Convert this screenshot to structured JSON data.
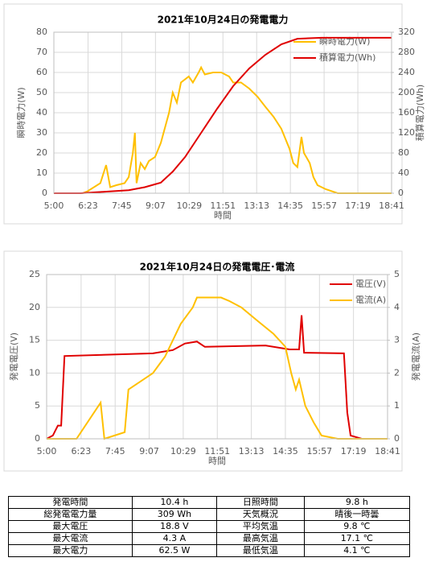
{
  "chart_data": [
    {
      "type": "line",
      "title": "2021年10月24日の発電電力",
      "xlabel": "時間",
      "ylabel": "瞬時電力(W)",
      "y2label": "積算電力(Wh)",
      "xlim": [
        300,
        1121
      ],
      "xticks": [
        {
          "value": 300,
          "label": "5:00"
        },
        {
          "value": 383,
          "label": "6:23"
        },
        {
          "value": 465,
          "label": "7:45"
        },
        {
          "value": 547,
          "label": "9:07"
        },
        {
          "value": 629,
          "label": "10:29"
        },
        {
          "value": 711,
          "label": "11:51"
        },
        {
          "value": 793,
          "label": "13:13"
        },
        {
          "value": 875,
          "label": "14:35"
        },
        {
          "value": 957,
          "label": "15:57"
        },
        {
          "value": 1039,
          "label": "17:19"
        },
        {
          "value": 1121,
          "label": "18:41"
        }
      ],
      "ylim": [
        0,
        80
      ],
      "yticks": [
        0,
        10,
        20,
        30,
        40,
        50,
        60,
        70,
        80
      ],
      "y2lim": [
        0,
        320
      ],
      "y2ticks": [
        0,
        40,
        80,
        120,
        160,
        200,
        240,
        280,
        320
      ],
      "grid": true,
      "legend": "upper right",
      "series": [
        {
          "name": "瞬時電力(W)",
          "color": "#ffc000",
          "x": [
            300,
            370,
            382,
            413,
            427,
            437,
            452,
            472,
            482,
            492,
            497,
            501,
            511,
            521,
            531,
            546,
            560,
            580,
            589,
            599,
            609,
            628,
            638,
            652,
            658,
            667,
            687,
            707,
            726,
            736,
            755,
            775,
            795,
            814,
            834,
            853,
            873,
            882,
            892,
            902,
            908,
            922,
            931,
            941,
            961,
            990,
            1121
          ],
          "values": [
            0,
            0,
            1,
            5,
            14,
            3,
            4,
            5,
            8,
            20,
            30,
            5,
            15,
            12,
            16,
            18,
            25,
            40,
            50,
            45,
            55,
            58,
            55,
            60,
            62.5,
            59,
            60,
            60,
            58,
            55,
            55,
            52,
            48,
            43,
            38,
            32,
            22,
            15,
            13,
            28,
            20,
            15,
            8,
            4,
            2,
            0,
            0
          ]
        },
        {
          "name": "積算電力(Wh)",
          "color": "#e00000",
          "axis": "y2",
          "x": [
            300,
            365,
            424,
            482,
            521,
            560,
            589,
            619,
            658,
            697,
            736,
            775,
            814,
            853,
            892,
            951,
            1121
          ],
          "values": [
            0,
            0,
            3,
            6,
            12,
            21,
            43,
            72,
            120,
            168,
            213,
            248,
            275,
            296,
            307,
            309,
            309
          ]
        }
      ]
    },
    {
      "type": "line",
      "title": "2021年10月24日の発電電圧･電流",
      "xlabel": "時間",
      "ylabel": "発電電圧(V)",
      "y2label": "発電電流(A)",
      "xlim": [
        300,
        1121
      ],
      "xticks": [
        {
          "value": 300,
          "label": "5:00"
        },
        {
          "value": 383,
          "label": "6:23"
        },
        {
          "value": 465,
          "label": "7:45"
        },
        {
          "value": 547,
          "label": "9:07"
        },
        {
          "value": 629,
          "label": "10:29"
        },
        {
          "value": 711,
          "label": "11:51"
        },
        {
          "value": 793,
          "label": "13:13"
        },
        {
          "value": 875,
          "label": "14:35"
        },
        {
          "value": 957,
          "label": "15:57"
        },
        {
          "value": 1039,
          "label": "17:19"
        },
        {
          "value": 1121,
          "label": "18:41"
        }
      ],
      "ylim": [
        0,
        25
      ],
      "yticks": [
        0,
        5,
        10,
        15,
        20,
        25
      ],
      "y2lim": [
        0,
        5
      ],
      "y2ticks": [
        0,
        1,
        2,
        3,
        4,
        5
      ],
      "grid": true,
      "legend": "upper right",
      "series": [
        {
          "name": "電圧(V)",
          "color": "#e00000",
          "x": [
            300,
            315,
            327,
            335,
            343,
            556,
            604,
            633,
            662,
            681,
            827,
            885,
            908,
            914,
            920,
            1016,
            1024,
            1032,
            1059,
            1121
          ],
          "values": [
            0,
            0.5,
            2,
            2,
            12.6,
            13,
            13.5,
            14.5,
            14.8,
            14,
            14.2,
            13.6,
            13.6,
            18.8,
            13.1,
            13,
            4,
            0.5,
            0,
            0
          ]
        },
        {
          "name": "電流(A)",
          "color": "#ffc000",
          "axis": "y2",
          "x": [
            300,
            372,
            430,
            439,
            488,
            497,
            556,
            585,
            604,
            623,
            652,
            662,
            720,
            739,
            769,
            807,
            846,
            875,
            889,
            900,
            908,
            923,
            943,
            962,
            1001,
            1121
          ],
          "values": [
            0,
            0,
            1.1,
            0,
            0.2,
            1.5,
            2,
            2.5,
            3,
            3.5,
            4,
            4.3,
            4.3,
            4.2,
            4,
            3.6,
            3.2,
            2.8,
            2,
            1.5,
            1.8,
            1,
            0.5,
            0.1,
            0,
            0
          ]
        }
      ]
    }
  ],
  "table": {
    "rows": [
      [
        "発電時間",
        "10.4 h",
        "日照時間",
        "9.8 h"
      ],
      [
        "総発電電力量",
        "309 Wh",
        "天気概況",
        "晴後一時曇"
      ],
      [
        "最大電圧",
        "18.8 V",
        "平均気温",
        "9.8 ℃"
      ],
      [
        "最大電流",
        "4.3 A",
        "最高気温",
        "17.1 ℃"
      ],
      [
        "最大電力",
        "62.5 W",
        "最低気温",
        "4.1 ℃"
      ]
    ]
  }
}
